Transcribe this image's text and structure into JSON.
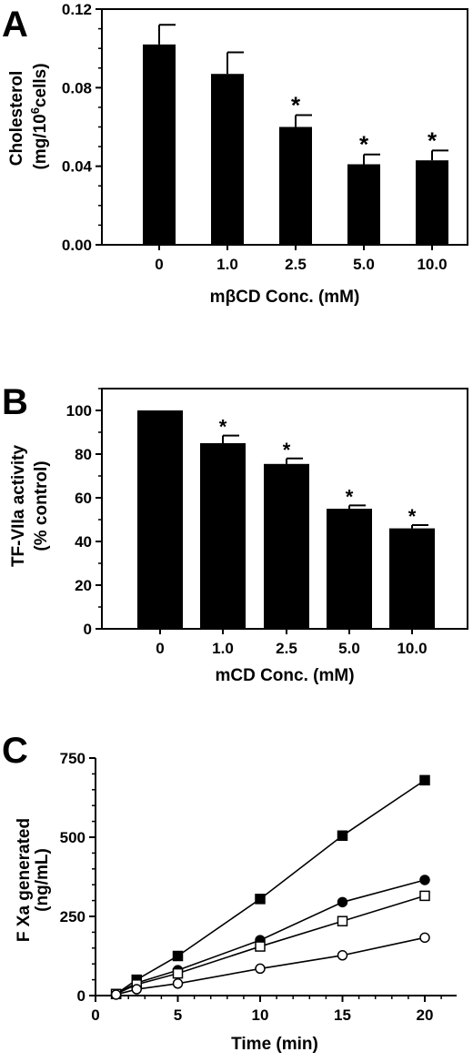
{
  "chart_data": [
    {
      "type": "bar",
      "panel": "A",
      "categories": [
        "0",
        "1.0",
        "2.5",
        "5.0",
        "10.0"
      ],
      "values": [
        0.102,
        0.087,
        0.06,
        0.041,
        0.043
      ],
      "errors": [
        0.01,
        0.011,
        0.006,
        0.005,
        0.005
      ],
      "significance": [
        "",
        "",
        "*",
        "*",
        "*"
      ],
      "xlabel": "mβCD Conc. (mM)",
      "ylabel_line1": "Cholesterol",
      "ylabel_line2": "(mg/10",
      "ylabel_sup": "6",
      "ylabel_line2_end": "cells)",
      "yticks": [
        "0.00",
        "0.04",
        "0.08",
        "0.12"
      ],
      "ylim": [
        0,
        0.12
      ],
      "bar_color": "#000000"
    },
    {
      "type": "bar",
      "panel": "B",
      "categories": [
        "0",
        "1.0",
        "2.5",
        "5.0",
        "10.0"
      ],
      "values": [
        100,
        85,
        75.5,
        55,
        46
      ],
      "errors": [
        0,
        3.5,
        2.5,
        1.5,
        1.5
      ],
      "significance": [
        "",
        "*",
        "*",
        "*",
        "*"
      ],
      "xlabel": "mCD Conc. (mM)",
      "ylabel_line1": "TF-VIIa activity",
      "ylabel_line2": "(% control)",
      "yticks": [
        "0",
        "20",
        "40",
        "60",
        "80",
        "100"
      ],
      "ylim": [
        0,
        110
      ],
      "bar_color": "#000000"
    },
    {
      "type": "line",
      "panel": "C",
      "xlabel": "Time (min)",
      "ylabel_line1": "F Xa generated",
      "ylabel_line2": "(ng/mL)",
      "xticks": [
        "0",
        "5",
        "10",
        "15",
        "20"
      ],
      "yticks": [
        "0",
        "250",
        "500",
        "750"
      ],
      "xlim": [
        0,
        22
      ],
      "ylim": [
        0,
        750
      ],
      "series": [
        {
          "marker": "square-filled",
          "x": [
            1.25,
            2.5,
            5,
            10,
            15,
            20
          ],
          "y": [
            5,
            50,
            125,
            305,
            505,
            680
          ]
        },
        {
          "marker": "circle-filled",
          "x": [
            1.25,
            2.5,
            5,
            10,
            15,
            20
          ],
          "y": [
            5,
            40,
            80,
            175,
            295,
            365
          ]
        },
        {
          "marker": "square-open",
          "x": [
            1.25,
            2.5,
            5,
            10,
            15,
            20
          ],
          "y": [
            5,
            35,
            70,
            155,
            235,
            315
          ]
        },
        {
          "marker": "circle-open",
          "x": [
            1.25,
            2.5,
            5,
            10,
            15,
            20
          ],
          "y": [
            3,
            20,
            38,
            85,
            127,
            183
          ]
        }
      ]
    }
  ]
}
